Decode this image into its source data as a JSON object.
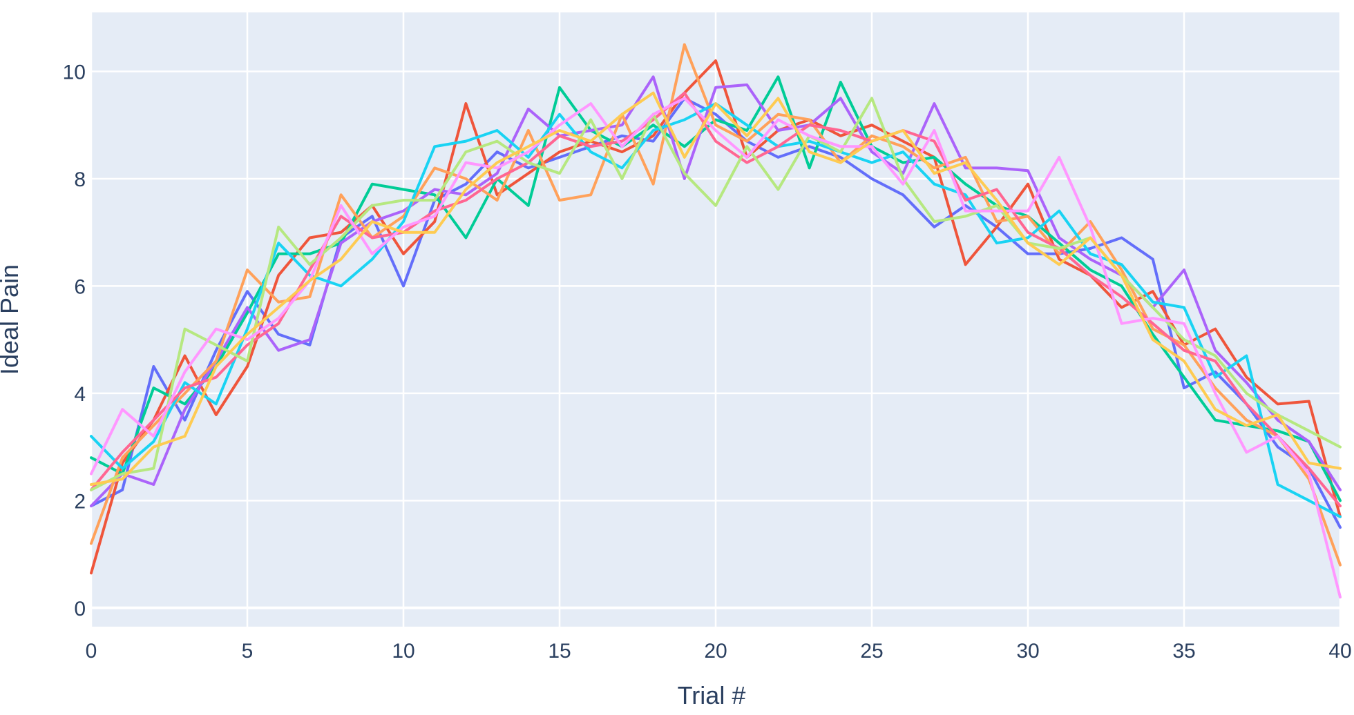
{
  "chart_data": {
    "type": "line",
    "xlabel": "Trial #",
    "ylabel": "Ideal Pain",
    "xlim": [
      0,
      40
    ],
    "ylim": [
      -0.35,
      11.1
    ],
    "xticks": [
      0,
      5,
      10,
      15,
      20,
      25,
      30,
      35,
      40
    ],
    "yticks": [
      0,
      2,
      4,
      6,
      8,
      10
    ],
    "grid": true,
    "legend": "none",
    "x": [
      0,
      1,
      2,
      3,
      4,
      5,
      6,
      7,
      8,
      9,
      10,
      11,
      12,
      13,
      14,
      15,
      16,
      17,
      18,
      19,
      20,
      21,
      22,
      23,
      24,
      25,
      26,
      27,
      28,
      29,
      30,
      31,
      32,
      33,
      34,
      35,
      36,
      37,
      38,
      39,
      40
    ],
    "series": [
      {
        "color": "#636efa",
        "values": [
          1.9,
          2.2,
          4.5,
          3.5,
          4.8,
          5.9,
          5.1,
          4.9,
          6.9,
          7.3,
          6.0,
          7.6,
          7.9,
          8.5,
          8.2,
          8.4,
          8.6,
          8.8,
          8.7,
          9.5,
          9.2,
          8.7,
          8.4,
          8.6,
          8.4,
          8.0,
          7.7,
          7.1,
          7.5,
          7.1,
          6.6,
          6.6,
          6.7,
          6.9,
          6.5,
          4.1,
          4.4,
          3.8,
          3.0,
          2.6,
          1.5
        ]
      },
      {
        "color": "#ef553b",
        "values": [
          0.65,
          2.7,
          3.5,
          4.7,
          3.6,
          4.5,
          6.2,
          6.9,
          7.0,
          7.5,
          6.6,
          7.2,
          9.4,
          7.7,
          8.1,
          8.5,
          8.7,
          8.5,
          8.8,
          9.6,
          10.2,
          8.4,
          8.9,
          9.1,
          8.8,
          9.0,
          8.7,
          8.4,
          6.4,
          7.1,
          7.9,
          6.5,
          6.2,
          5.6,
          5.9,
          4.9,
          5.2,
          4.3,
          3.8,
          3.85,
          1.7
        ]
      },
      {
        "color": "#00cc96",
        "values": [
          2.8,
          2.5,
          4.1,
          3.8,
          4.5,
          5.5,
          6.6,
          6.6,
          6.8,
          7.9,
          7.8,
          7.7,
          6.9,
          8.0,
          7.5,
          9.7,
          8.9,
          8.6,
          9.0,
          8.6,
          9.1,
          8.9,
          9.9,
          8.2,
          9.8,
          8.6,
          8.3,
          8.4,
          7.9,
          7.5,
          7.3,
          6.8,
          6.3,
          6.0,
          5.1,
          4.3,
          3.5,
          3.4,
          3.3,
          3.1,
          2.0
        ]
      },
      {
        "color": "#ab63fa",
        "values": [
          1.9,
          2.5,
          2.3,
          3.7,
          4.6,
          5.6,
          4.8,
          5.0,
          6.8,
          7.2,
          7.4,
          7.8,
          7.7,
          8.1,
          9.3,
          8.8,
          8.9,
          9.0,
          9.9,
          8.0,
          9.7,
          9.75,
          8.9,
          9.0,
          9.5,
          8.5,
          8.1,
          9.4,
          8.2,
          8.2,
          8.15,
          6.9,
          6.5,
          6.2,
          5.6,
          6.3,
          4.8,
          4.2,
          3.5,
          3.1,
          2.2
        ]
      },
      {
        "color": "#ffa15a",
        "values": [
          1.2,
          2.8,
          3.4,
          4.0,
          4.6,
          6.3,
          5.7,
          5.8,
          7.7,
          6.9,
          7.3,
          8.2,
          8.0,
          7.6,
          8.9,
          7.6,
          7.7,
          9.2,
          7.9,
          10.5,
          9.0,
          8.7,
          9.2,
          9.1,
          8.3,
          8.8,
          8.6,
          8.2,
          8.4,
          7.2,
          7.3,
          6.6,
          7.2,
          6.3,
          5.2,
          4.9,
          4.1,
          3.5,
          3.2,
          2.4,
          0.8
        ]
      },
      {
        "color": "#19d3f3",
        "values": [
          3.2,
          2.6,
          3.1,
          4.2,
          3.8,
          5.2,
          6.8,
          6.2,
          6.0,
          6.5,
          7.2,
          8.6,
          8.7,
          8.9,
          8.4,
          9.2,
          8.5,
          8.2,
          8.9,
          9.1,
          9.4,
          9.0,
          8.6,
          8.7,
          8.5,
          8.3,
          8.5,
          7.9,
          7.7,
          6.8,
          6.9,
          7.4,
          6.6,
          6.4,
          5.7,
          5.6,
          4.3,
          4.7,
          2.3,
          2.0,
          1.7
        ]
      },
      {
        "color": "#ff6692",
        "values": [
          2.2,
          2.9,
          3.5,
          4.1,
          4.3,
          4.9,
          5.3,
          6.3,
          7.3,
          6.9,
          7.0,
          7.4,
          7.6,
          8.0,
          8.3,
          8.8,
          8.6,
          8.7,
          9.1,
          9.6,
          8.7,
          8.3,
          8.6,
          9.0,
          8.9,
          8.7,
          8.9,
          8.7,
          7.6,
          7.8,
          7.0,
          6.7,
          6.2,
          5.8,
          5.3,
          4.8,
          4.6,
          3.8,
          3.2,
          2.6,
          1.9
        ]
      },
      {
        "color": "#b6e880",
        "values": [
          2.2,
          2.5,
          2.6,
          5.2,
          4.9,
          4.6,
          7.1,
          6.4,
          6.9,
          7.5,
          7.6,
          7.6,
          8.5,
          8.7,
          8.3,
          8.1,
          9.1,
          8.0,
          9.2,
          8.1,
          7.5,
          8.6,
          7.8,
          8.8,
          8.5,
          9.5,
          8.0,
          7.2,
          7.3,
          7.5,
          6.8,
          6.7,
          6.9,
          6.2,
          5.6,
          5.0,
          4.7,
          4.0,
          3.6,
          3.3,
          3.0
        ]
      },
      {
        "color": "#ff97ff",
        "values": [
          2.5,
          3.7,
          3.2,
          4.4,
          5.2,
          5.0,
          5.4,
          6.1,
          7.5,
          6.6,
          7.1,
          7.3,
          8.3,
          8.2,
          8.5,
          9.0,
          9.4,
          8.6,
          9.2,
          9.5,
          8.9,
          8.4,
          9.1,
          8.8,
          8.6,
          8.6,
          7.9,
          8.9,
          7.4,
          7.4,
          7.4,
          8.4,
          7.1,
          5.3,
          5.4,
          5.3,
          4.0,
          2.9,
          3.2,
          2.5,
          0.2
        ]
      },
      {
        "color": "#fecb52",
        "values": [
          2.3,
          2.4,
          3.0,
          3.2,
          4.5,
          5.1,
          5.6,
          6.1,
          6.5,
          7.2,
          7.0,
          7.0,
          7.8,
          8.3,
          8.6,
          8.9,
          8.7,
          9.2,
          9.6,
          8.4,
          9.4,
          8.8,
          9.5,
          8.5,
          8.3,
          8.7,
          8.9,
          8.1,
          8.3,
          7.6,
          6.8,
          6.4,
          6.9,
          6.2,
          5.0,
          4.6,
          3.7,
          3.4,
          3.6,
          2.7,
          2.6
        ]
      }
    ]
  }
}
